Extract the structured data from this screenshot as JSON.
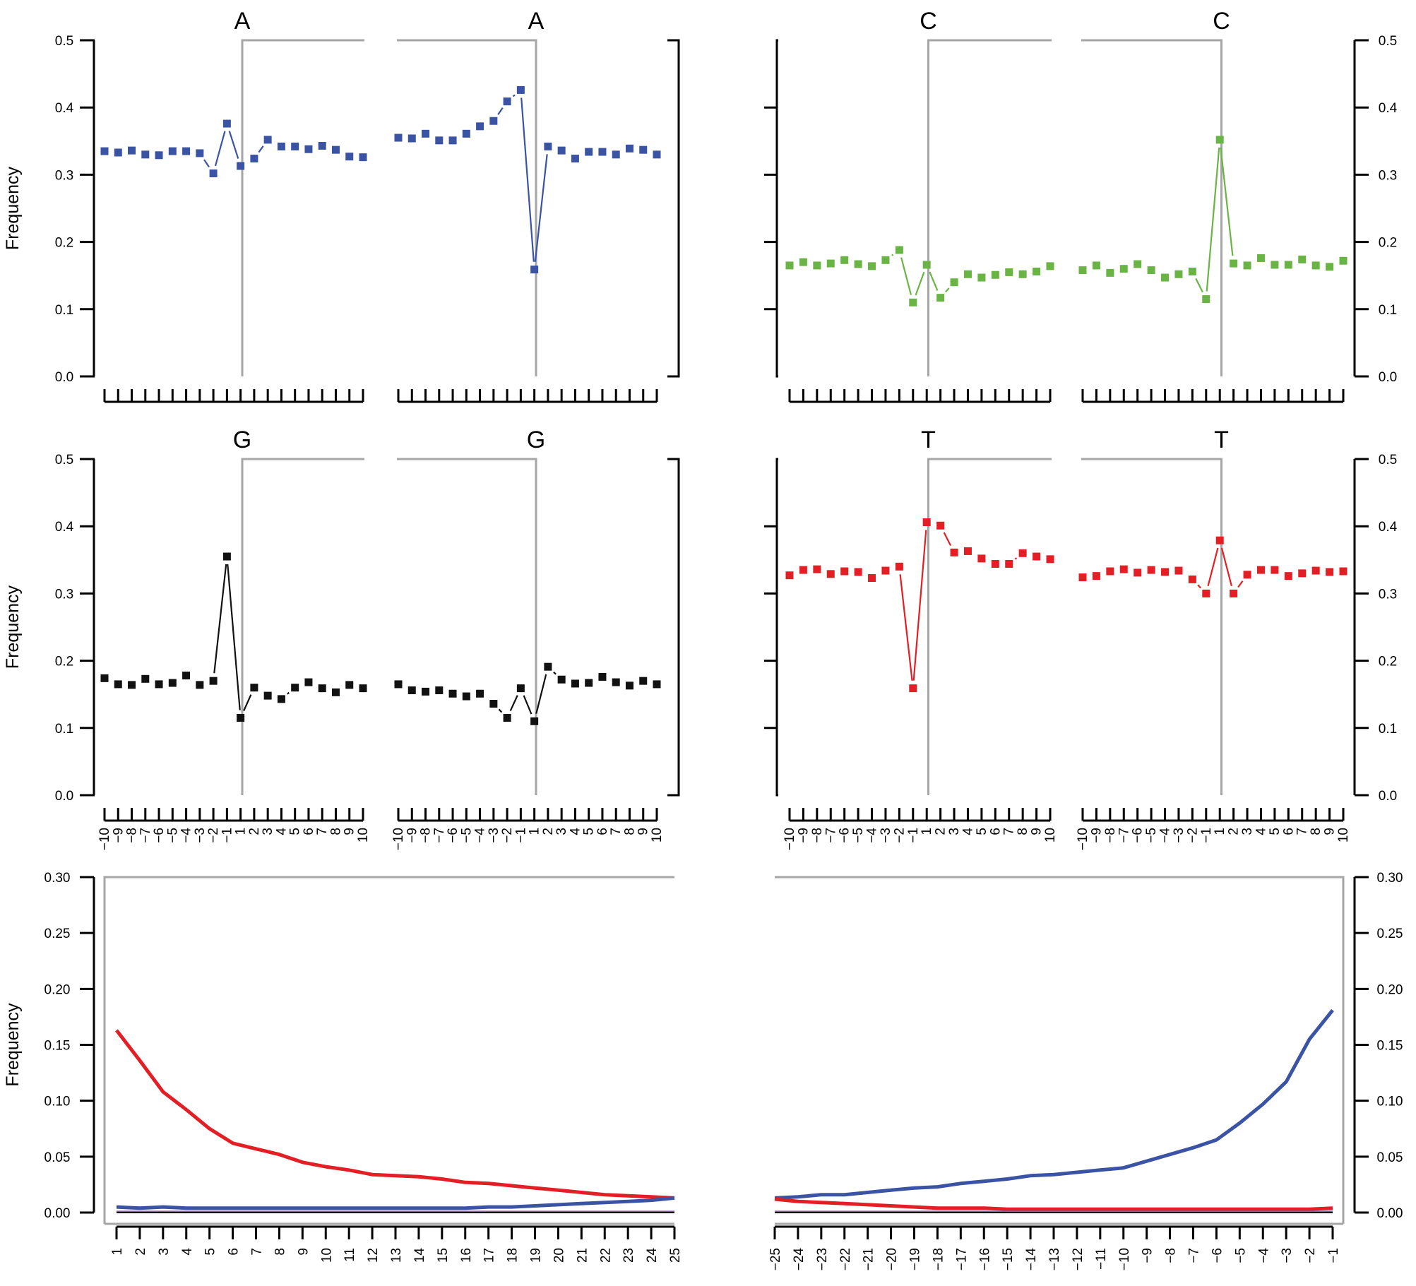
{
  "colors": {
    "A": "#3a53a4",
    "C": "#6ab445",
    "G": "#111111",
    "T": "#e31e24",
    "frame": "#a6a6a6",
    "axis": "#000000",
    "purple": "#8a5fa8"
  },
  "chart_data": [
    {
      "type": "scatter",
      "title": "A",
      "side": "left",
      "row": 0,
      "ylabel": "Frequency",
      "ylim": [
        0,
        0.5
      ],
      "yticks": [
        "0.0",
        "0.1",
        "0.2",
        "0.3",
        "0.4",
        "0.5"
      ],
      "xticks": [
        "-10",
        "-9",
        "-8",
        "-7",
        "-6",
        "-5",
        "-4",
        "-3",
        "-2",
        "-1",
        "1",
        "2",
        "3",
        "4",
        "5",
        "6",
        "7",
        "8",
        "9",
        "10"
      ],
      "show_xticklabels": false,
      "values": [
        0.335,
        0.333,
        0.336,
        0.33,
        0.329,
        0.335,
        0.335,
        0.332,
        0.302,
        0.376,
        0.313,
        0.324,
        0.352,
        0.342,
        0.342,
        0.338,
        0.343,
        0.337,
        0.327,
        0.326
      ],
      "color": "A"
    },
    {
      "type": "scatter",
      "title": "A",
      "side": "right",
      "row": 0,
      "ylim": [
        0,
        0.5
      ],
      "xticks": [
        "-10",
        "-9",
        "-8",
        "-7",
        "-6",
        "-5",
        "-4",
        "-3",
        "-2",
        "-1",
        "1",
        "2",
        "3",
        "4",
        "5",
        "6",
        "7",
        "8",
        "9",
        "10"
      ],
      "show_xticklabels": false,
      "values": [
        0.355,
        0.354,
        0.361,
        0.351,
        0.351,
        0.361,
        0.372,
        0.38,
        0.409,
        0.426,
        0.159,
        0.342,
        0.336,
        0.324,
        0.334,
        0.334,
        0.33,
        0.339,
        0.337,
        0.33
      ],
      "color": "A"
    },
    {
      "type": "scatter",
      "title": "C",
      "side": "left",
      "row": 0,
      "ylim": [
        0,
        0.5
      ],
      "xticks": [
        "-10",
        "-9",
        "-8",
        "-7",
        "-6",
        "-5",
        "-4",
        "-3",
        "-2",
        "-1",
        "1",
        "2",
        "3",
        "4",
        "5",
        "6",
        "7",
        "8",
        "9",
        "10"
      ],
      "show_xticklabels": false,
      "values": [
        0.165,
        0.17,
        0.165,
        0.168,
        0.173,
        0.167,
        0.164,
        0.173,
        0.188,
        0.11,
        0.166,
        0.117,
        0.14,
        0.152,
        0.147,
        0.151,
        0.155,
        0.152,
        0.156,
        0.164
      ],
      "color": "C"
    },
    {
      "type": "scatter",
      "title": "C",
      "side": "right",
      "row": 0,
      "ylim": [
        0,
        0.5
      ],
      "yticks_right": [
        "0.0",
        "0.1",
        "0.2",
        "0.3",
        "0.4",
        "0.5"
      ],
      "xticks": [
        "-10",
        "-9",
        "-8",
        "-7",
        "-6",
        "-5",
        "-4",
        "-3",
        "-2",
        "-1",
        "1",
        "2",
        "3",
        "4",
        "5",
        "6",
        "7",
        "8",
        "9",
        "10"
      ],
      "show_xticklabels": false,
      "values": [
        0.158,
        0.165,
        0.154,
        0.16,
        0.167,
        0.158,
        0.147,
        0.152,
        0.156,
        0.115,
        0.352,
        0.168,
        0.165,
        0.176,
        0.166,
        0.166,
        0.174,
        0.165,
        0.163,
        0.172
      ],
      "color": "C"
    },
    {
      "type": "scatter",
      "title": "G",
      "side": "left",
      "row": 1,
      "ylabel": "Frequency",
      "ylim": [
        0,
        0.5
      ],
      "yticks": [
        "0.0",
        "0.1",
        "0.2",
        "0.3",
        "0.4",
        "0.5"
      ],
      "xticks": [
        "-10",
        "-9",
        "-8",
        "-7",
        "-6",
        "-5",
        "-4",
        "-3",
        "-2",
        "-1",
        "1",
        "2",
        "3",
        "4",
        "5",
        "6",
        "7",
        "8",
        "9",
        "10"
      ],
      "show_xticklabels": true,
      "values": [
        0.174,
        0.165,
        0.164,
        0.173,
        0.165,
        0.167,
        0.178,
        0.164,
        0.17,
        0.355,
        0.115,
        0.16,
        0.148,
        0.143,
        0.16,
        0.168,
        0.159,
        0.153,
        0.164,
        0.159
      ],
      "color": "G"
    },
    {
      "type": "scatter",
      "title": "G",
      "side": "right",
      "row": 1,
      "ylim": [
        0,
        0.5
      ],
      "xticks": [
        "-10",
        "-9",
        "-8",
        "-7",
        "-6",
        "-5",
        "-4",
        "-3",
        "-2",
        "-1",
        "1",
        "2",
        "3",
        "4",
        "5",
        "6",
        "7",
        "8",
        "9",
        "10"
      ],
      "show_xticklabels": true,
      "values": [
        0.165,
        0.156,
        0.154,
        0.156,
        0.151,
        0.147,
        0.151,
        0.136,
        0.115,
        0.159,
        0.11,
        0.191,
        0.172,
        0.166,
        0.167,
        0.176,
        0.168,
        0.163,
        0.17,
        0.165
      ],
      "color": "G"
    },
    {
      "type": "scatter",
      "title": "T",
      "side": "left",
      "row": 1,
      "ylim": [
        0,
        0.5
      ],
      "xticks": [
        "-10",
        "-9",
        "-8",
        "-7",
        "-6",
        "-5",
        "-4",
        "-3",
        "-2",
        "-1",
        "1",
        "2",
        "3",
        "4",
        "5",
        "6",
        "7",
        "8",
        "9",
        "10"
      ],
      "show_xticklabels": true,
      "values": [
        0.327,
        0.335,
        0.336,
        0.329,
        0.333,
        0.332,
        0.323,
        0.334,
        0.34,
        0.159,
        0.406,
        0.401,
        0.361,
        0.363,
        0.352,
        0.344,
        0.344,
        0.36,
        0.355,
        0.351
      ],
      "color": "T"
    },
    {
      "type": "scatter",
      "title": "T",
      "side": "right",
      "row": 1,
      "ylim": [
        0,
        0.5
      ],
      "yticks_right": [
        "0.0",
        "0.1",
        "0.2",
        "0.3",
        "0.4",
        "0.5"
      ],
      "xticks": [
        "-10",
        "-9",
        "-8",
        "-7",
        "-6",
        "-5",
        "-4",
        "-3",
        "-2",
        "-1",
        "1",
        "2",
        "3",
        "4",
        "5",
        "6",
        "7",
        "8",
        "9",
        "10"
      ],
      "show_xticklabels": true,
      "values": [
        0.324,
        0.326,
        0.333,
        0.336,
        0.331,
        0.335,
        0.332,
        0.334,
        0.321,
        0.3,
        0.379,
        0.3,
        0.328,
        0.335,
        0.335,
        0.326,
        0.33,
        0.334,
        0.332,
        0.333
      ],
      "color": "T"
    },
    {
      "type": "line",
      "side": "left",
      "ylabel": "Frequency",
      "ylim": [
        0,
        0.3
      ],
      "yticks": [
        "0.00",
        "0.05",
        "0.10",
        "0.15",
        "0.20",
        "0.25",
        "0.30"
      ],
      "x": [
        "1",
        "2",
        "3",
        "4",
        "5",
        "6",
        "7",
        "8",
        "9",
        "10",
        "11",
        "12",
        "13",
        "14",
        "15",
        "16",
        "17",
        "18",
        "19",
        "20",
        "21",
        "22",
        "23",
        "24",
        "25"
      ],
      "series": [
        {
          "color": "T",
          "values": [
            0.163,
            0.136,
            0.108,
            0.092,
            0.075,
            0.062,
            0.057,
            0.052,
            0.045,
            0.041,
            0.038,
            0.034,
            0.033,
            0.032,
            0.03,
            0.027,
            0.026,
            0.024,
            0.022,
            0.02,
            0.018,
            0.016,
            0.015,
            0.014,
            0.013
          ]
        },
        {
          "color": "A",
          "values": [
            0.005,
            0.004,
            0.005,
            0.004,
            0.004,
            0.004,
            0.004,
            0.004,
            0.004,
            0.004,
            0.004,
            0.004,
            0.004,
            0.004,
            0.004,
            0.004,
            0.005,
            0.005,
            0.006,
            0.007,
            0.008,
            0.009,
            0.01,
            0.011,
            0.013
          ]
        },
        {
          "color": "purple",
          "values": [
            0.001,
            0.001,
            0.001,
            0.001,
            0.001,
            0.001,
            0.001,
            0.001,
            0.001,
            0.001,
            0.001,
            0.001,
            0.001,
            0.001,
            0.001,
            0.001,
            0.001,
            0.001,
            0.001,
            0.001,
            0.001,
            0.001,
            0.001,
            0.001,
            0.001
          ]
        },
        {
          "color": "G",
          "values": [
            0.0,
            0.0,
            0.0,
            0.0,
            0.0,
            0.0,
            0.0,
            0.0,
            0.0,
            0.0,
            0.0,
            0.0,
            0.0,
            0.0,
            0.0,
            0.0,
            0.0,
            0.0,
            0.0,
            0.0,
            0.0,
            0.0,
            0.0,
            0.0,
            0.0
          ]
        }
      ]
    },
    {
      "type": "line",
      "side": "right",
      "ylim": [
        0,
        0.3
      ],
      "yticks_right": [
        "0.00",
        "0.05",
        "0.10",
        "0.15",
        "0.20",
        "0.25",
        "0.30"
      ],
      "x": [
        "−25",
        "−24",
        "−23",
        "−22",
        "−21",
        "−20",
        "−19",
        "−18",
        "−17",
        "−16",
        "−15",
        "−14",
        "−13",
        "−12",
        "−11",
        "−10",
        "−9",
        "−8",
        "−7",
        "−6",
        "−5",
        "−4",
        "−3",
        "−2",
        "−1"
      ],
      "series": [
        {
          "color": "A",
          "values": [
            0.013,
            0.014,
            0.016,
            0.016,
            0.018,
            0.02,
            0.022,
            0.023,
            0.026,
            0.028,
            0.03,
            0.033,
            0.034,
            0.036,
            0.038,
            0.04,
            0.046,
            0.052,
            0.058,
            0.065,
            0.08,
            0.097,
            0.117,
            0.155,
            0.181
          ]
        },
        {
          "color": "T",
          "values": [
            0.012,
            0.01,
            0.009,
            0.008,
            0.007,
            0.006,
            0.005,
            0.004,
            0.004,
            0.004,
            0.003,
            0.003,
            0.003,
            0.003,
            0.003,
            0.003,
            0.003,
            0.003,
            0.003,
            0.003,
            0.003,
            0.003,
            0.003,
            0.003,
            0.004
          ]
        },
        {
          "color": "purple",
          "values": [
            0.001,
            0.001,
            0.001,
            0.001,
            0.001,
            0.001,
            0.001,
            0.001,
            0.001,
            0.001,
            0.001,
            0.001,
            0.001,
            0.001,
            0.001,
            0.001,
            0.001,
            0.001,
            0.001,
            0.001,
            0.001,
            0.001,
            0.001,
            0.001,
            0.001
          ]
        },
        {
          "color": "G",
          "values": [
            0.0,
            0.0,
            0.0,
            0.0,
            0.0,
            0.0,
            0.0,
            0.0,
            0.0,
            0.0,
            0.0,
            0.0,
            0.0,
            0.0,
            0.0,
            0.0,
            0.0,
            0.0,
            0.0,
            0.0,
            0.0,
            0.0,
            0.0,
            0.0,
            0.0
          ]
        }
      ]
    }
  ]
}
